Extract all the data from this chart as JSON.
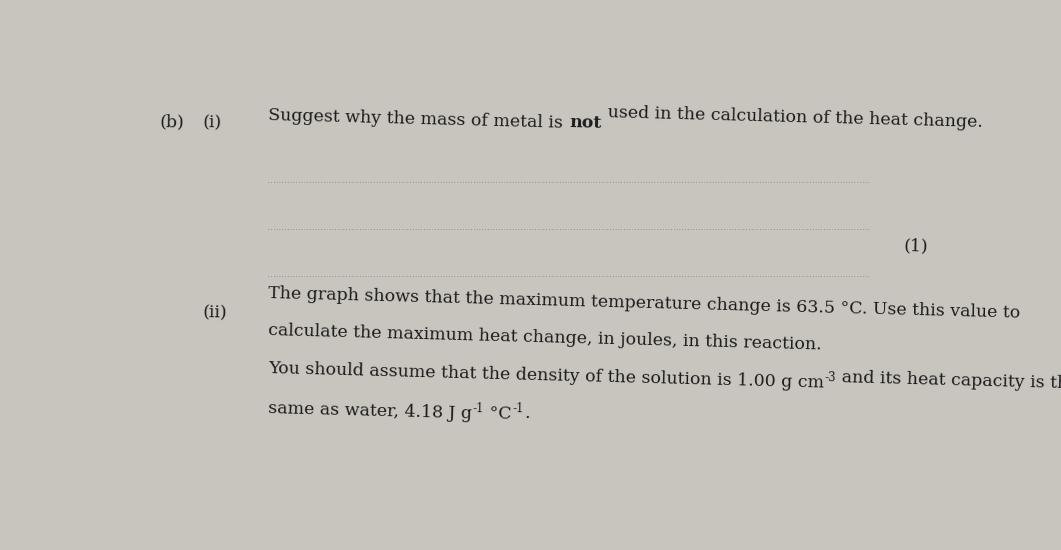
{
  "bg_color": "#c8c4be",
  "text_color": "#1c1c1c",
  "part_b_label": "(b)",
  "part_i_label": "(i)",
  "part_ii_label": "(ii)",
  "mark_label": "(1)",
  "line1_normal1": "Suggest why the mass of metal is ",
  "line1_bold": "not",
  "line1_normal2": " used in the calculation of the heat change.",
  "ii_line1": "The graph shows that the maximum temperature change is 63.5 °C. Use this value to",
  "ii_line2": "calculate the maximum heat change, in joules, in this reaction.",
  "ii_line3a": "You should assume that the density of the solution is 1.00 g cm",
  "ii_line3_sup": "-3",
  "ii_line3b": " and its heat capacity is the",
  "ii_line4a": "same as water, 4.18 J g",
  "ii_line4_sup1": "-1",
  "ii_line4b": " °C",
  "ii_line4_sup2": "-1",
  "ii_line4c": ".",
  "fontsize": 12.5,
  "fontsize_sup": 8.5,
  "rotation": -1.5
}
